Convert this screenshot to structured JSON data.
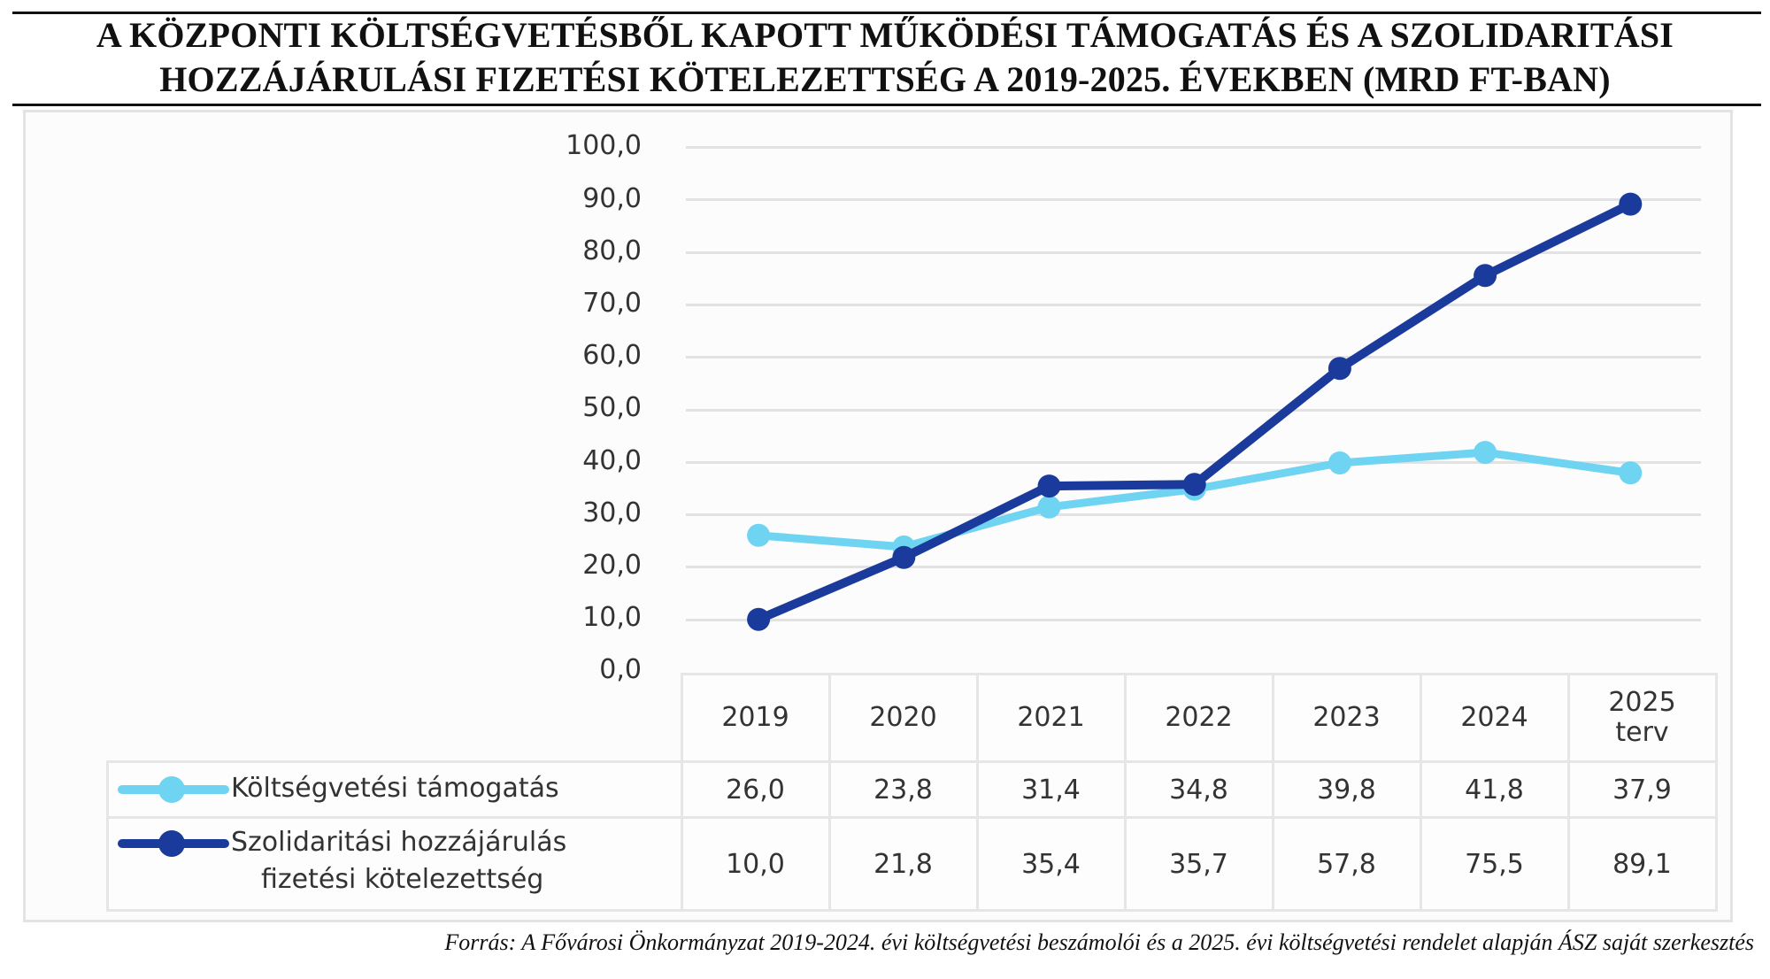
{
  "title": {
    "line1": "A KÖZPONTI KÖLTSÉGVETÉSBŐL KAPOTT MŰKÖDÉSI TÁMOGATÁS ÉS A SZOLIDARITÁSI",
    "line2": "HOZZÁJÁRULÁSI FIZETÉSI KÖTELEZETTSÉG A 2019-2025. ÉVEKBEN (MRD FT-BAN)"
  },
  "source_note": "Forrás: A Fővárosi Önkormányzat 2019-2024. évi költségvetési beszámolói és a 2025. évi költségvetési rendelet alapján ÁSZ saját szerkesztés",
  "y_axis": {
    "ticks": [
      "100,0",
      "90,0",
      "80,0",
      "70,0",
      "60,0",
      "50,0",
      "40,0",
      "30,0",
      "20,0",
      "10,0",
      "0,0"
    ]
  },
  "table": {
    "headers": [
      {
        "line1": "2019",
        "line2": ""
      },
      {
        "line1": "2020",
        "line2": ""
      },
      {
        "line1": "2021",
        "line2": ""
      },
      {
        "line1": "2022",
        "line2": ""
      },
      {
        "line1": "2023",
        "line2": ""
      },
      {
        "line1": "2024",
        "line2": ""
      },
      {
        "line1": "2025",
        "line2": "terv"
      }
    ],
    "rows": [
      {
        "label_line1": "Költségvetési támogatás",
        "label_line2": "",
        "values": [
          "26,0",
          "23,8",
          "31,4",
          "34,8",
          "39,8",
          "41,8",
          "37,9"
        ]
      },
      {
        "label_line1": "Szolidaritási hozzájárulás",
        "label_line2": "fizetési kötelezettség",
        "values": [
          "10,0",
          "21,8",
          "35,4",
          "35,7",
          "57,8",
          "75,5",
          "89,1"
        ]
      }
    ]
  },
  "colors": {
    "series1": "#6fd3f2",
    "series2": "#1a3a9c",
    "grid": "#e2e2e2"
  },
  "chart_data": {
    "type": "line",
    "title": "A központi költségvetésből kapott működési támogatás és a szolidaritási hozzájárulási fizetési kötelezettség a 2019-2025. években (Mrd Ft-ban)",
    "categories": [
      "2019",
      "2020",
      "2021",
      "2022",
      "2023",
      "2024",
      "2025 terv"
    ],
    "series": [
      {
        "name": "Költségvetési támogatás",
        "color": "#6fd3f2",
        "values": [
          26.0,
          23.8,
          31.4,
          34.8,
          39.8,
          41.8,
          37.9
        ]
      },
      {
        "name": "Szolidaritási hozzájárulás fizetési kötelezettség",
        "color": "#1a3a9c",
        "values": [
          10.0,
          21.8,
          35.4,
          35.7,
          57.8,
          75.5,
          89.1
        ]
      }
    ],
    "xlabel": "",
    "ylabel": "",
    "ylim": [
      0,
      100
    ],
    "yticks": [
      0,
      10,
      20,
      30,
      40,
      50,
      60,
      70,
      80,
      90,
      100
    ],
    "grid": true,
    "legend_position": "data-table (left of values)",
    "source": "Forrás: A Fővárosi Önkormányzat 2019-2024. évi költségvetési beszámolói és a 2025. évi költségvetési rendelet alapján ÁSZ saját szerkesztés"
  }
}
